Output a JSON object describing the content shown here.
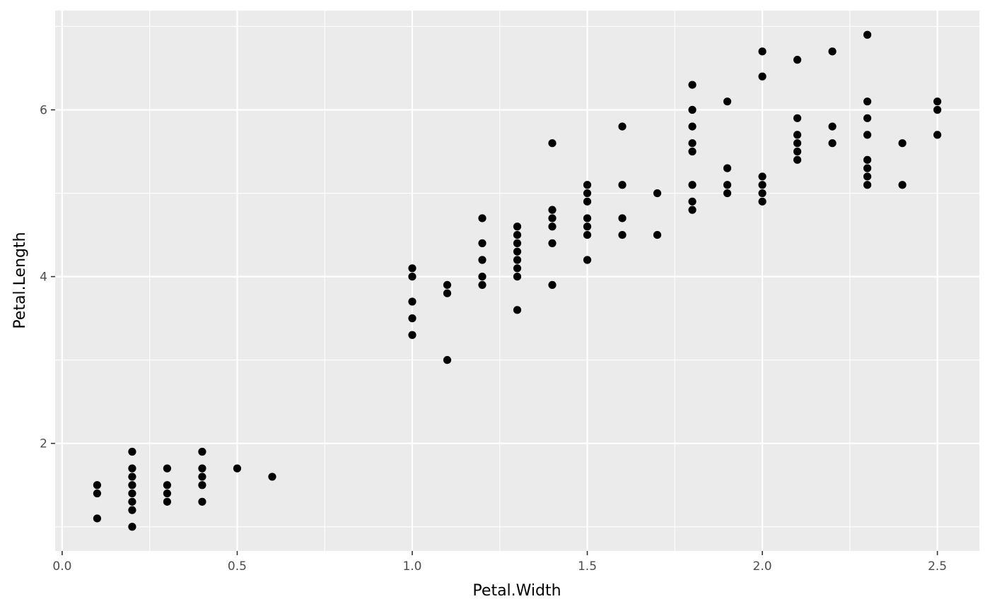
{
  "chart_data": {
    "type": "scatter",
    "title": "",
    "xlabel": "Petal.Width",
    "ylabel": "Petal.Length",
    "xlim": [
      -0.02,
      2.62
    ],
    "ylim": [
      0.71,
      7.19
    ],
    "x_ticks": [
      0.0,
      0.5,
      1.0,
      1.5,
      2.0,
      2.5
    ],
    "x_tick_labels": [
      "0.0",
      "0.5",
      "1.0",
      "1.5",
      "2.0",
      "2.5"
    ],
    "x_minor_ticks": [
      0.25,
      0.75,
      1.25,
      1.75,
      2.25
    ],
    "y_ticks": [
      2,
      4,
      6
    ],
    "y_tick_labels": [
      "2",
      "4",
      "6"
    ],
    "y_minor_ticks": [
      1,
      3,
      5,
      7
    ],
    "grid": true,
    "colors": {
      "panel_background": "#ebebeb",
      "grid": "#ffffff",
      "point": "#000000",
      "tick_text": "#4d4d4d",
      "tick_mark": "#333333"
    },
    "points": [
      [
        0.1,
        1.5
      ],
      [
        0.1,
        1.4
      ],
      [
        0.1,
        1.1
      ],
      [
        0.2,
        1.9
      ],
      [
        0.2,
        1.7
      ],
      [
        0.2,
        1.6
      ],
      [
        0.2,
        1.5
      ],
      [
        0.2,
        1.4
      ],
      [
        0.2,
        1.3
      ],
      [
        0.2,
        1.2
      ],
      [
        0.2,
        1.0
      ],
      [
        0.3,
        1.7
      ],
      [
        0.3,
        1.5
      ],
      [
        0.3,
        1.4
      ],
      [
        0.3,
        1.3
      ],
      [
        0.4,
        1.9
      ],
      [
        0.4,
        1.7
      ],
      [
        0.4,
        1.6
      ],
      [
        0.4,
        1.5
      ],
      [
        0.4,
        1.3
      ],
      [
        0.5,
        1.7
      ],
      [
        0.6,
        1.6
      ],
      [
        1.0,
        4.1
      ],
      [
        1.0,
        4.0
      ],
      [
        1.0,
        3.7
      ],
      [
        1.0,
        3.5
      ],
      [
        1.0,
        3.3
      ],
      [
        1.1,
        3.9
      ],
      [
        1.1,
        3.8
      ],
      [
        1.1,
        3.0
      ],
      [
        1.2,
        4.7
      ],
      [
        1.2,
        4.4
      ],
      [
        1.2,
        4.2
      ],
      [
        1.2,
        4.0
      ],
      [
        1.2,
        3.9
      ],
      [
        1.3,
        4.6
      ],
      [
        1.3,
        4.5
      ],
      [
        1.3,
        4.4
      ],
      [
        1.3,
        4.3
      ],
      [
        1.3,
        4.2
      ],
      [
        1.3,
        4.1
      ],
      [
        1.3,
        4.0
      ],
      [
        1.3,
        3.6
      ],
      [
        1.4,
        5.6
      ],
      [
        1.4,
        4.8
      ],
      [
        1.4,
        4.7
      ],
      [
        1.4,
        4.6
      ],
      [
        1.4,
        4.4
      ],
      [
        1.4,
        3.9
      ],
      [
        1.5,
        5.1
      ],
      [
        1.5,
        5.0
      ],
      [
        1.5,
        4.9
      ],
      [
        1.5,
        4.7
      ],
      [
        1.5,
        4.6
      ],
      [
        1.5,
        4.5
      ],
      [
        1.5,
        4.2
      ],
      [
        1.6,
        5.8
      ],
      [
        1.6,
        5.1
      ],
      [
        1.6,
        4.7
      ],
      [
        1.6,
        4.5
      ],
      [
        1.7,
        5.0
      ],
      [
        1.7,
        4.5
      ],
      [
        1.8,
        6.3
      ],
      [
        1.8,
        6.0
      ],
      [
        1.8,
        5.8
      ],
      [
        1.8,
        5.6
      ],
      [
        1.8,
        5.5
      ],
      [
        1.8,
        5.1
      ],
      [
        1.8,
        4.9
      ],
      [
        1.8,
        4.8
      ],
      [
        1.9,
        6.1
      ],
      [
        1.9,
        5.3
      ],
      [
        1.9,
        5.1
      ],
      [
        1.9,
        5.0
      ],
      [
        2.0,
        6.7
      ],
      [
        2.0,
        6.4
      ],
      [
        2.0,
        5.2
      ],
      [
        2.0,
        5.1
      ],
      [
        2.0,
        5.0
      ],
      [
        2.0,
        4.9
      ],
      [
        2.1,
        6.6
      ],
      [
        2.1,
        5.9
      ],
      [
        2.1,
        5.7
      ],
      [
        2.1,
        5.6
      ],
      [
        2.1,
        5.5
      ],
      [
        2.1,
        5.4
      ],
      [
        2.2,
        6.7
      ],
      [
        2.2,
        5.8
      ],
      [
        2.2,
        5.6
      ],
      [
        2.3,
        6.9
      ],
      [
        2.3,
        6.1
      ],
      [
        2.3,
        5.9
      ],
      [
        2.3,
        5.7
      ],
      [
        2.3,
        5.4
      ],
      [
        2.3,
        5.3
      ],
      [
        2.3,
        5.2
      ],
      [
        2.3,
        5.1
      ],
      [
        2.4,
        5.6
      ],
      [
        2.4,
        5.1
      ],
      [
        2.5,
        6.1
      ],
      [
        2.5,
        6.0
      ],
      [
        2.5,
        5.7
      ]
    ]
  }
}
